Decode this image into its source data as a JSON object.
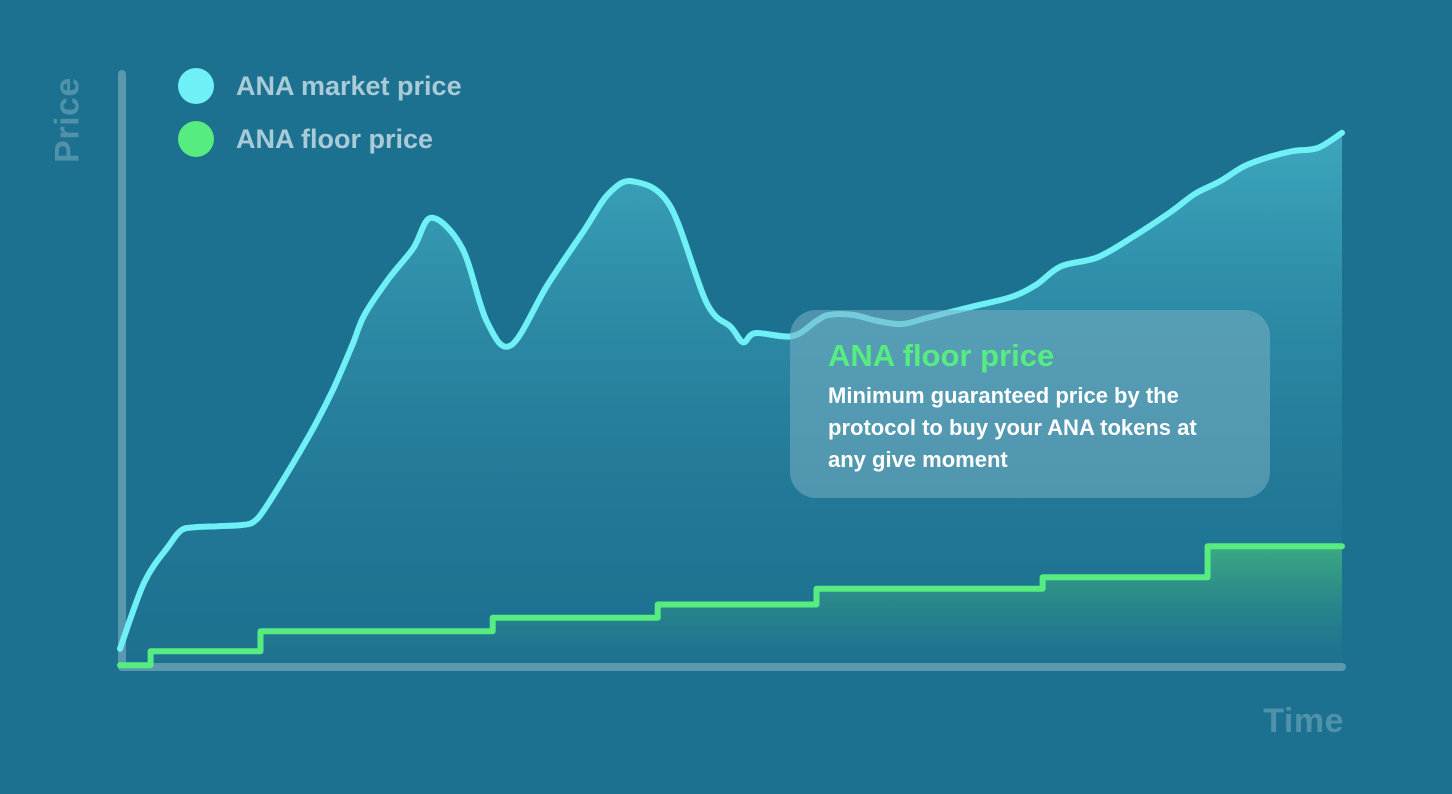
{
  "colors": {
    "background": "#1d7190",
    "market_line": "#6ff0f7",
    "floor_line": "#57ec80",
    "axis": "#4f92a9"
  },
  "legend": {
    "items": [
      {
        "label": "ANA market price",
        "color": "#6ff0f7"
      },
      {
        "label": "ANA floor price",
        "color": "#57ec80"
      }
    ]
  },
  "tooltip": {
    "title": "ANA floor price",
    "body": "Minimum guaranteed price by the protocol to buy your ANA tokens at any give moment"
  },
  "chart_data": {
    "type": "area",
    "xlabel": "Time",
    "ylabel": "Price",
    "xlim": [
      0,
      100
    ],
    "ylim": [
      0,
      100
    ],
    "grid": false,
    "legend_position": "top-left",
    "series": [
      {
        "name": "ANA market price",
        "line_style": "smooth",
        "x": [
          0,
          2,
          4,
          5,
          6,
          8,
          10,
          11,
          12,
          14,
          16,
          17.5,
          19,
          20,
          22,
          24,
          25.5,
          28,
          30,
          32,
          35,
          38,
          40,
          42,
          45,
          48,
          50,
          51,
          52,
          55,
          57,
          58,
          60,
          62,
          64,
          66,
          68,
          70,
          73,
          75,
          77,
          80,
          83,
          86,
          88,
          90,
          92,
          94,
          96,
          98,
          100
        ],
        "y": [
          3,
          14,
          20,
          22.5,
          23,
          23.2,
          23.4,
          24,
          26.5,
          33,
          40,
          46,
          53,
          58,
          64,
          69,
          74,
          69,
          57,
          53,
          63,
          72,
          78,
          80,
          76,
          60,
          56,
          53.5,
          55,
          54.5,
          57,
          58,
          58,
          57,
          56.5,
          57.5,
          58.5,
          59.5,
          61,
          63,
          66,
          67.5,
          71,
          75,
          78,
          80,
          82.5,
          84,
          85,
          85.5,
          88
        ]
      },
      {
        "name": "ANA floor price",
        "line_style": "step",
        "x": [
          0,
          2.5,
          2.5,
          11.5,
          11.5,
          30.5,
          30.5,
          44,
          44,
          57,
          57,
          75.5,
          75.5,
          89,
          89,
          100
        ],
        "y": [
          0.3,
          0.3,
          2.6,
          2.6,
          5.9,
          5.9,
          8.1,
          8.1,
          10.3,
          10.3,
          12.9,
          12.9,
          14.8,
          14.8,
          19.9,
          19.9
        ]
      }
    ]
  }
}
